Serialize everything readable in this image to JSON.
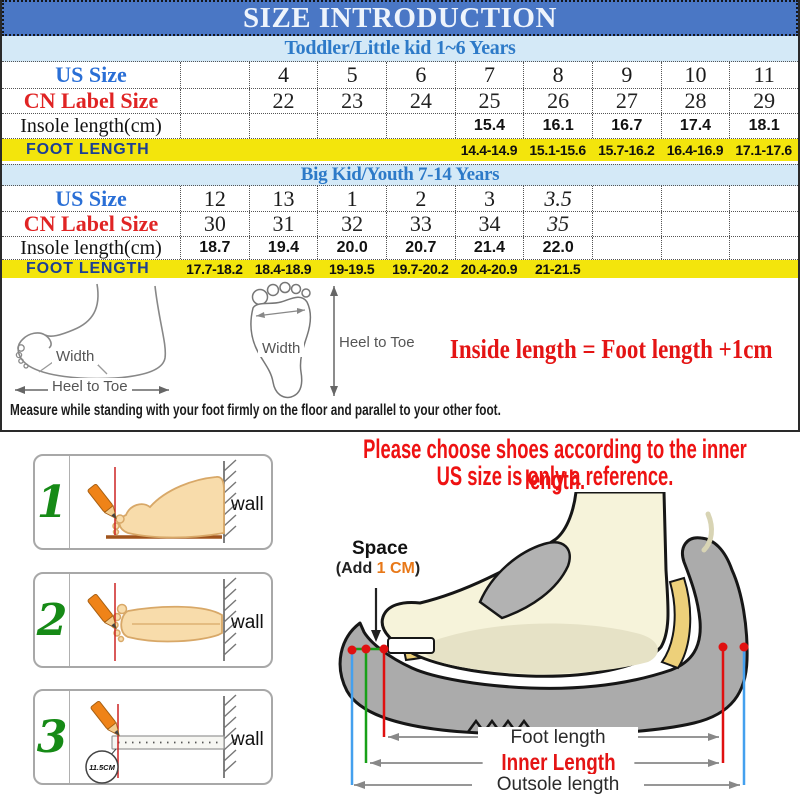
{
  "banner": {
    "title": "SIZE INTRODUCTION"
  },
  "tables": [
    {
      "header": "Toddler/Little kid 1~6 Years",
      "rows": [
        {
          "label": "US Size",
          "kind": "us",
          "cells": [
            "",
            "4",
            "5",
            "6",
            "7",
            "8",
            "9",
            "10",
            "11"
          ]
        },
        {
          "label": "CN Label Size",
          "kind": "cn",
          "cells": [
            "",
            "22",
            "23",
            "24",
            "25",
            "26",
            "27",
            "28",
            "29"
          ]
        },
        {
          "label": "Insole length(cm)",
          "kind": "insole",
          "cells": [
            "",
            "",
            "",
            "",
            "15.4",
            "16.1",
            "16.7",
            "17.4",
            "18.1"
          ]
        },
        {
          "label": "FOOT LENGTH",
          "kind": "foot",
          "cells": [
            "",
            "",
            "",
            "",
            "14.4-14.9",
            "15.1-15.6",
            "15.7-16.2",
            "16.4-16.9",
            "17.1-17.6"
          ]
        }
      ]
    },
    {
      "header": "Big Kid/Youth 7-14 Years",
      "rows": [
        {
          "label": "US Size",
          "kind": "us",
          "cells": [
            "12",
            "13",
            "1",
            "2",
            "3",
            "3.5",
            "",
            "",
            ""
          ]
        },
        {
          "label": "CN Label Size",
          "kind": "cn",
          "cells": [
            "30",
            "31",
            "32",
            "33",
            "34",
            "35",
            "",
            "",
            ""
          ]
        },
        {
          "label": "Insole length(cm)",
          "kind": "insole",
          "cells": [
            "18.7",
            "19.4",
            "20.0",
            "20.7",
            "21.4",
            "22.0",
            "",
            "",
            ""
          ]
        },
        {
          "label": "FOOT LENGTH",
          "kind": "foot",
          "cells": [
            "17.7-18.2",
            "18.4-18.9",
            "19-19.5",
            "19.7-20.2",
            "20.4-20.9",
            "21-21.5",
            "",
            "",
            ""
          ]
        }
      ]
    }
  ],
  "measure_diagram": {
    "side_foot": {
      "width_label": "Width",
      "heel_to_toe_label": "Heel to Toe"
    },
    "footprint": {
      "width_label": "Width",
      "heel_to_toe_label": "Heel to Toe"
    },
    "formula": "Inside length = Foot length +1cm",
    "instruction": "Measure while standing with your foot firmly on the floor and parallel to your other foot."
  },
  "notice": {
    "line1": "Please choose shoes according to the inner length.",
    "line2": "US size is only a reference."
  },
  "steps": [
    {
      "number": "1",
      "wall_label": "wall"
    },
    {
      "number": "2",
      "wall_label": "wall"
    },
    {
      "number": "3",
      "wall_label": "wall",
      "ruler_value": "11.5CM"
    }
  ],
  "shoe_diagram": {
    "space_label": "Space",
    "space_note_prefix": "(Add ",
    "space_note_value": "1 CM",
    "space_note_suffix": ")",
    "foot_length_label": "Foot length",
    "inner_length_label": "Inner Length",
    "outsole_length_label": "Outsole length"
  },
  "colors": {
    "banner_bg": "#4a77c5",
    "band_bg": "#d4e9f7",
    "band_text": "#2d7ac8",
    "us_size_text": "#2a6fd6",
    "cn_size_text": "#e02424",
    "highlight_row_bg": "#f3e50c",
    "highlight_row_text": "#1c3f94",
    "alert_red": "#ee1212",
    "step_number_green": "#168a16",
    "pencil_orange": "#ef8318",
    "space_cm_orange": "#e87818",
    "shoe_gray": "#ababab",
    "insole_yellow": "#edd07a",
    "foot_cream": "#f6f3da",
    "measure_blue": "#44a0ee",
    "measure_green": "#18a018",
    "measure_red": "#e01010"
  }
}
